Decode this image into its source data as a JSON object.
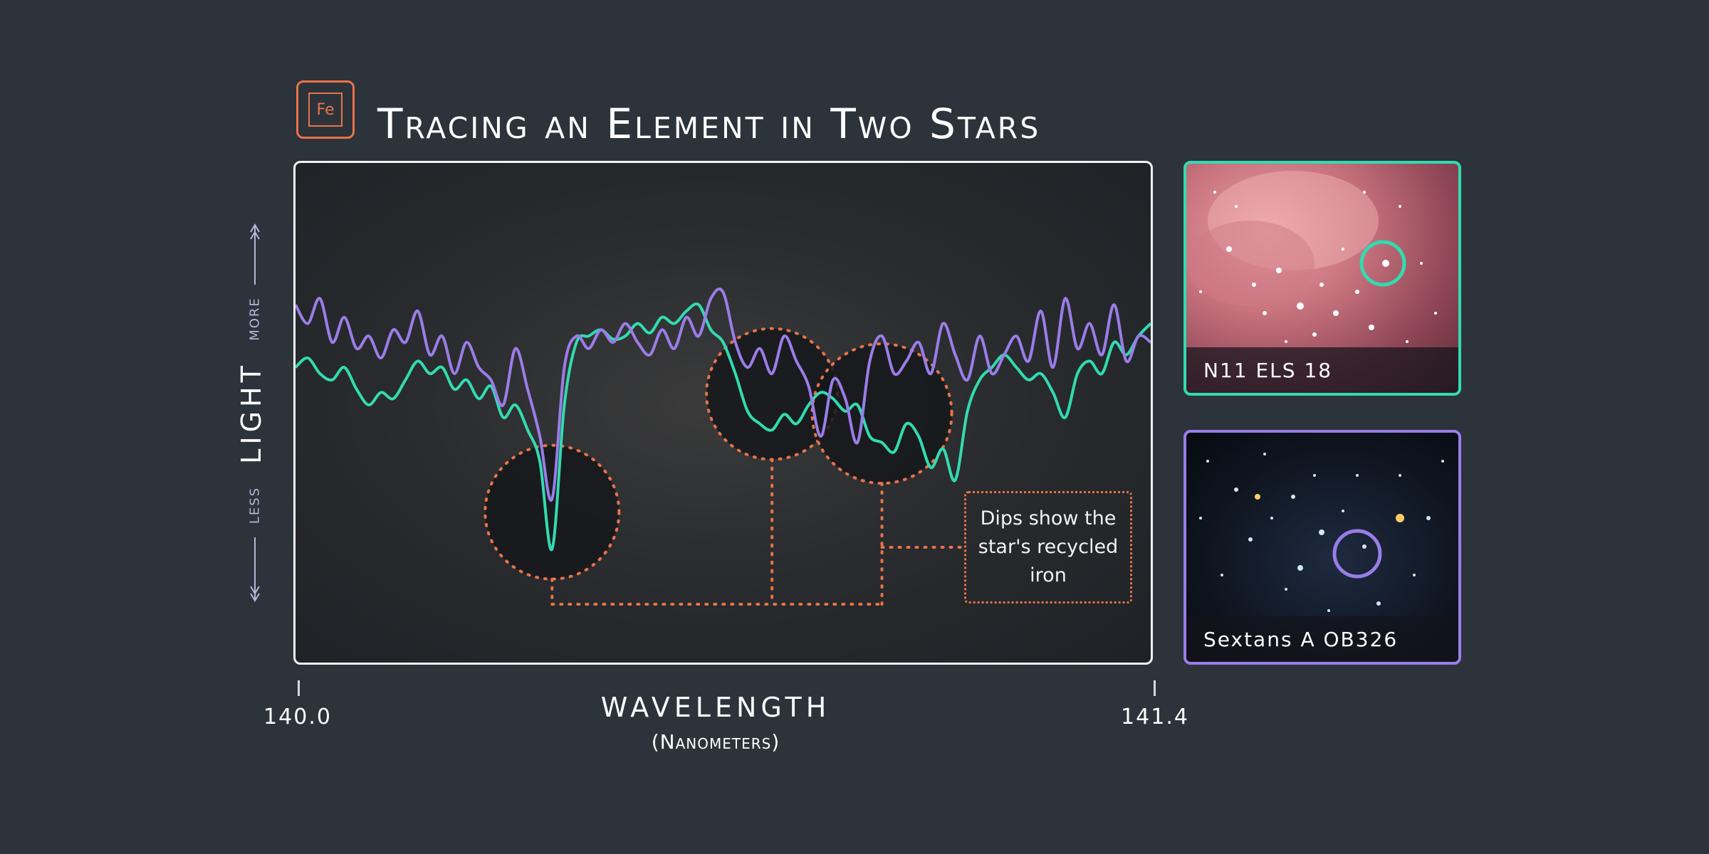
{
  "badge": {
    "symbol": "Fe"
  },
  "header": {
    "title": "Tracing an Element in Two Stars"
  },
  "colors": {
    "accent": "#e8734a",
    "series_1": "#32dbb0",
    "series_2": "#9a7de8",
    "background": "#2c333b"
  },
  "callout": {
    "text": "Dips show the star's recycled iron"
  },
  "cards": [
    {
      "label": "N11 ELS 18",
      "border_color": "#32dbb0"
    },
    {
      "label": "Sextans A OB326",
      "border_color": "#9a7de8"
    }
  ],
  "chart_data": {
    "type": "line",
    "title": "Tracing an Element in Two Stars",
    "xlabel": "Wavelength",
    "xlabel_unit": "(Nanometers)",
    "ylabel": "Light",
    "y_more_label": "More",
    "y_less_label": "Less",
    "xlim": [
      140.0,
      141.4
    ],
    "x_ticks": [
      "140.0",
      "141.4"
    ],
    "ylim": [
      0,
      1
    ],
    "grid": false,
    "legend": "none",
    "series": [
      {
        "color": "#9a7de8",
        "x": [
          140.0,
          140.02,
          140.04,
          140.06,
          140.08,
          140.1,
          140.12,
          140.14,
          140.16,
          140.18,
          140.2,
          140.22,
          140.24,
          140.26,
          140.28,
          140.3,
          140.32,
          140.34,
          140.36,
          140.38,
          140.4,
          140.42,
          140.44,
          140.46,
          140.48,
          140.5,
          140.52,
          140.54,
          140.56,
          140.58,
          140.6,
          140.62,
          140.64,
          140.66,
          140.68,
          140.7,
          140.72,
          140.74,
          140.76,
          140.78,
          140.8,
          140.82,
          140.84,
          140.86,
          140.88,
          140.9,
          140.92,
          140.94,
          140.96,
          140.98,
          141.0,
          141.02,
          141.04,
          141.06,
          141.08,
          141.1,
          141.12,
          141.14,
          141.16,
          141.18,
          141.2,
          141.22,
          141.24,
          141.26,
          141.28,
          141.3,
          141.32,
          141.34,
          141.36,
          141.38,
          141.4
        ],
        "y": [
          0.82,
          0.76,
          0.84,
          0.7,
          0.78,
          0.68,
          0.72,
          0.65,
          0.74,
          0.7,
          0.8,
          0.66,
          0.72,
          0.6,
          0.7,
          0.62,
          0.58,
          0.5,
          0.68,
          0.55,
          0.4,
          0.2,
          0.62,
          0.72,
          0.68,
          0.74,
          0.7,
          0.76,
          0.7,
          0.66,
          0.74,
          0.68,
          0.78,
          0.72,
          0.84,
          0.86,
          0.7,
          0.62,
          0.68,
          0.6,
          0.72,
          0.64,
          0.56,
          0.4,
          0.58,
          0.52,
          0.38,
          0.64,
          0.72,
          0.6,
          0.64,
          0.7,
          0.6,
          0.76,
          0.66,
          0.58,
          0.72,
          0.6,
          0.66,
          0.72,
          0.64,
          0.8,
          0.62,
          0.84,
          0.68,
          0.76,
          0.66,
          0.82,
          0.64,
          0.72,
          0.7
        ]
      },
      {
        "color": "#32dbb0",
        "x": [
          140.0,
          140.02,
          140.04,
          140.06,
          140.08,
          140.1,
          140.12,
          140.14,
          140.16,
          140.18,
          140.2,
          140.22,
          140.24,
          140.26,
          140.28,
          140.3,
          140.32,
          140.34,
          140.36,
          140.38,
          140.4,
          140.42,
          140.44,
          140.46,
          140.48,
          140.5,
          140.52,
          140.54,
          140.56,
          140.58,
          140.6,
          140.62,
          140.64,
          140.66,
          140.68,
          140.7,
          140.72,
          140.74,
          140.76,
          140.78,
          140.8,
          140.82,
          140.84,
          140.86,
          140.88,
          140.9,
          140.92,
          140.94,
          140.96,
          140.98,
          141.0,
          141.02,
          141.04,
          141.06,
          141.08,
          141.1,
          141.12,
          141.14,
          141.16,
          141.18,
          141.2,
          141.22,
          141.24,
          141.26,
          141.28,
          141.3,
          141.32,
          141.34,
          141.36,
          141.38,
          141.4
        ],
        "y": [
          0.62,
          0.65,
          0.6,
          0.58,
          0.62,
          0.55,
          0.5,
          0.54,
          0.52,
          0.58,
          0.64,
          0.6,
          0.62,
          0.55,
          0.58,
          0.52,
          0.56,
          0.46,
          0.5,
          0.42,
          0.32,
          0.04,
          0.5,
          0.7,
          0.72,
          0.74,
          0.71,
          0.72,
          0.76,
          0.73,
          0.78,
          0.76,
          0.8,
          0.82,
          0.74,
          0.7,
          0.6,
          0.48,
          0.44,
          0.42,
          0.47,
          0.44,
          0.5,
          0.54,
          0.52,
          0.48,
          0.5,
          0.4,
          0.38,
          0.35,
          0.44,
          0.4,
          0.3,
          0.36,
          0.26,
          0.48,
          0.58,
          0.62,
          0.66,
          0.62,
          0.58,
          0.6,
          0.54,
          0.46,
          0.6,
          0.64,
          0.6,
          0.7,
          0.66,
          0.72,
          0.76
        ]
      }
    ],
    "highlighted_dips": [
      {
        "x": 140.42
      },
      {
        "x": 140.78
      },
      {
        "x": 140.96
      }
    ]
  }
}
